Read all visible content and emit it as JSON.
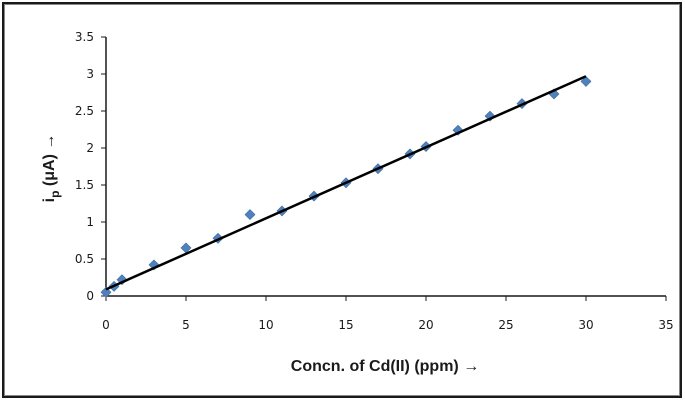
{
  "chart_data": {
    "type": "scatter",
    "xlabel": "Concn. of Cd(II) (ppm) →",
    "ylabel": {
      "main": "i",
      "sub": "p",
      "rest": " (μA) →"
    },
    "xlim": [
      0,
      35
    ],
    "ylim": [
      0,
      3.5
    ],
    "xticks": [
      "0",
      "5",
      "10",
      "15",
      "20",
      "25",
      "30",
      "35"
    ],
    "yticks": [
      "0",
      "0.5",
      "1",
      "1.5",
      "2",
      "2.5",
      "3",
      "3.5"
    ],
    "grid": false,
    "legend": "none",
    "marker_color": "#4f81bd",
    "series": [
      {
        "marker": "diamond",
        "x": [
          0,
          0.5,
          1,
          3,
          5,
          7,
          9,
          11,
          13,
          15,
          17,
          19,
          20,
          22,
          24,
          26,
          28,
          30
        ],
        "y": [
          0.05,
          0.13,
          0.22,
          0.42,
          0.65,
          0.78,
          1.1,
          1.15,
          1.35,
          1.53,
          1.72,
          1.92,
          2.02,
          2.24,
          2.43,
          2.6,
          2.73,
          2.9
        ]
      }
    ],
    "trendline": {
      "type": "linear",
      "color": "#000000",
      "x": [
        0,
        30
      ],
      "y": [
        0.09,
        2.97
      ]
    }
  }
}
